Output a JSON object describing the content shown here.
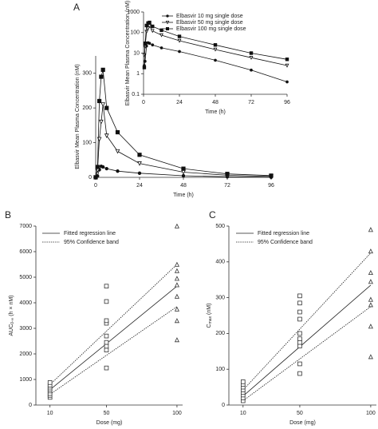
{
  "chart_data": [
    {
      "type": "line",
      "panel": "A",
      "xlabel": "Time (h)",
      "ylabel": "Elbasvir Mean Plasma Concentration (nM)",
      "x": [
        0,
        1,
        2,
        3,
        4,
        6,
        12,
        24,
        48,
        72,
        96
      ],
      "xlim": [
        0,
        96
      ],
      "xticks": [
        0,
        24,
        48,
        72,
        96
      ],
      "ylim": [
        0,
        350
      ],
      "yticks": [
        0,
        100,
        200,
        300
      ],
      "series": [
        {
          "color": "#111111",
          "marker": "circle",
          "filled": true,
          "values": [
            0,
            4,
            22,
            32,
            30,
            25,
            18,
            12,
            4.5,
            1.5,
            0.4
          ]
        },
        {
          "color": "#111111",
          "marker": "triangle-down",
          "filled": false,
          "values": [
            0,
            20,
            110,
            160,
            210,
            120,
            75,
            40,
            15,
            6,
            2.5
          ]
        },
        {
          "color": "#111111",
          "marker": "square",
          "filled": true,
          "values": [
            0,
            30,
            220,
            290,
            310,
            200,
            130,
            65,
            25,
            10,
            5
          ]
        }
      ]
    },
    {
      "type": "line",
      "xlabel": "Time (h)",
      "ylabel": "Elbasvir Mean Plasma Concentration (nM)",
      "ylog": true,
      "x": [
        0.5,
        1,
        2,
        3,
        4,
        6,
        12,
        24,
        48,
        72,
        96
      ],
      "xlim": [
        0,
        96
      ],
      "xticks": [
        0,
        24,
        48,
        72,
        96
      ],
      "ylim": [
        0.1,
        1000
      ],
      "yticks": [
        0.1,
        1,
        10,
        100,
        1000
      ],
      "series": [
        {
          "name": "Elbasvir 10 mg single dose",
          "color": "#111111",
          "marker": "circle",
          "filled": true,
          "values": [
            2.5,
            4,
            22,
            32,
            30,
            25,
            18,
            12,
            4.5,
            1.5,
            0.4
          ]
        },
        {
          "name": "Elbasvir 50 mg single dose",
          "color": "#111111",
          "marker": "triangle-down",
          "filled": false,
          "values": [
            8,
            20,
            110,
            160,
            210,
            120,
            75,
            40,
            15,
            6,
            2.5
          ]
        },
        {
          "name": "Elbasvir 100 mg single dose",
          "color": "#111111",
          "marker": "square",
          "filled": true,
          "values": [
            2,
            30,
            220,
            290,
            310,
            200,
            130,
            65,
            25,
            10,
            5
          ]
        }
      ]
    },
    {
      "type": "scatter",
      "panel": "B",
      "xlabel": "Dose (mg)",
      "ylabel": {
        "text": "AUC",
        "sub": "0-∞",
        "unit": " (h × nM)"
      },
      "xlim": [
        0,
        104
      ],
      "xticks": [
        10,
        50,
        100
      ],
      "ylim": [
        0,
        7000
      ],
      "yticks": [
        0,
        1000,
        2000,
        3000,
        4000,
        5000,
        6000,
        7000
      ],
      "series": [
        {
          "color": "#333333",
          "marker": "square",
          "filled": false,
          "x": [
            10,
            10,
            10,
            10,
            10,
            10,
            10,
            10
          ],
          "values": [
            300,
            380,
            450,
            550,
            620,
            700,
            780,
            880
          ]
        },
        {
          "color": "#333333",
          "marker": "square",
          "filled": false,
          "x": [
            50,
            50,
            50,
            50,
            50,
            50,
            50,
            50,
            50
          ],
          "values": [
            1450,
            2150,
            2300,
            2450,
            2700,
            3200,
            3300,
            4050,
            4650
          ]
        },
        {
          "color": "#333333",
          "marker": "triangle-up",
          "filled": false,
          "x": [
            100,
            100,
            100,
            100,
            100,
            100,
            100,
            100,
            100
          ],
          "values": [
            2550,
            3300,
            3750,
            4250,
            4700,
            4950,
            5250,
            5500,
            7000
          ]
        }
      ],
      "lines": [
        {
          "name": "Fitted regression line",
          "style": "solid",
          "x": [
            10,
            100
          ],
          "values": [
            600,
            4650
          ]
        },
        {
          "name": "95% Confidence band",
          "style": "dotted",
          "x": [
            10,
            100
          ],
          "upper": [
            800,
            5500
          ],
          "lower": [
            420,
            3850
          ]
        }
      ]
    },
    {
      "type": "scatter",
      "panel": "C",
      "xlabel": "Dose (mg)",
      "ylabel": {
        "text": "C",
        "sub": "max",
        "unit": " (nM)"
      },
      "xlim": [
        0,
        104
      ],
      "xticks": [
        10,
        50,
        100
      ],
      "ylim": [
        0,
        500
      ],
      "yticks": [
        0,
        100,
        200,
        300,
        400,
        500
      ],
      "series": [
        {
          "color": "#333333",
          "marker": "square",
          "filled": false,
          "x": [
            10,
            10,
            10,
            10,
            10,
            10,
            10,
            10
          ],
          "values": [
            12,
            20,
            28,
            35,
            42,
            50,
            58,
            65
          ]
        },
        {
          "color": "#333333",
          "marker": "square",
          "filled": false,
          "x": [
            50,
            50,
            50,
            50,
            50,
            50,
            50,
            50,
            50,
            50
          ],
          "values": [
            88,
            115,
            165,
            175,
            185,
            200,
            240,
            260,
            285,
            305
          ]
        },
        {
          "color": "#333333",
          "marker": "triangle-up",
          "filled": false,
          "x": [
            100,
            100,
            100,
            100,
            100,
            100,
            100,
            100
          ],
          "values": [
            135,
            220,
            280,
            295,
            345,
            370,
            430,
            490
          ]
        }
      ],
      "lines": [
        {
          "name": "Fitted regression line",
          "style": "solid",
          "x": [
            10,
            100
          ],
          "values": [
            25,
            335
          ]
        },
        {
          "name": "95% Confidence band",
          "style": "dotted",
          "x": [
            10,
            100
          ],
          "upper": [
            42,
            425
          ],
          "lower": [
            12,
            275
          ]
        }
      ]
    }
  ]
}
